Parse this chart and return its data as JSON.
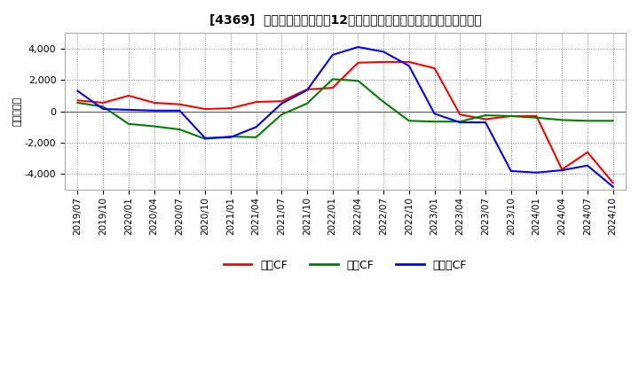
{
  "title": "[4369]  キャッシュフローの12か月移動合計の対前年同期増減額の推移",
  "ylabel": "（百万円）",
  "background_color": "#ffffff",
  "plot_bg_color": "#ffffff",
  "grid_color": "#aaaaaa",
  "ylim": [
    -5000,
    5000
  ],
  "yticks": [
    -4000,
    -2000,
    0,
    2000,
    4000
  ],
  "x_labels": [
    "2019/07",
    "2019/10",
    "2020/01",
    "2020/04",
    "2020/07",
    "2020/10",
    "2021/01",
    "2021/04",
    "2021/07",
    "2021/10",
    "2022/01",
    "2022/04",
    "2022/07",
    "2022/10",
    "2023/01",
    "2023/04",
    "2023/07",
    "2023/10",
    "2024/01",
    "2024/04",
    "2024/07",
    "2024/10"
  ],
  "series": {
    "営業CF": {
      "color": "#ff0000",
      "data": [
        700,
        550,
        1000,
        550,
        450,
        150,
        200,
        600,
        650,
        1400,
        1500,
        3100,
        3150,
        3150,
        2750,
        -200,
        -500,
        -300,
        -300,
        -3700,
        -2600,
        -4550
      ]
    },
    "投資CF": {
      "color": "#008000",
      "data": [
        550,
        300,
        -800,
        -950,
        -1150,
        -1750,
        -1600,
        -1650,
        -200,
        500,
        2050,
        1950,
        600,
        -600,
        -650,
        -650,
        -250,
        -300,
        -400,
        -550,
        -600,
        -600
      ]
    },
    "フリーCF": {
      "color": "#0000ff",
      "data": [
        1300,
        150,
        100,
        50,
        50,
        -1700,
        -1650,
        -1000,
        500,
        1350,
        3600,
        4100,
        3800,
        2900,
        -150,
        -700,
        -700,
        -3800,
        -3900,
        -3750,
        -3450,
        -4800
      ]
    }
  },
  "legend_labels": [
    "営業CF",
    "投資CF",
    "フリーCF"
  ],
  "legend_colors": [
    "#ff0000",
    "#008000",
    "#0000ff"
  ]
}
